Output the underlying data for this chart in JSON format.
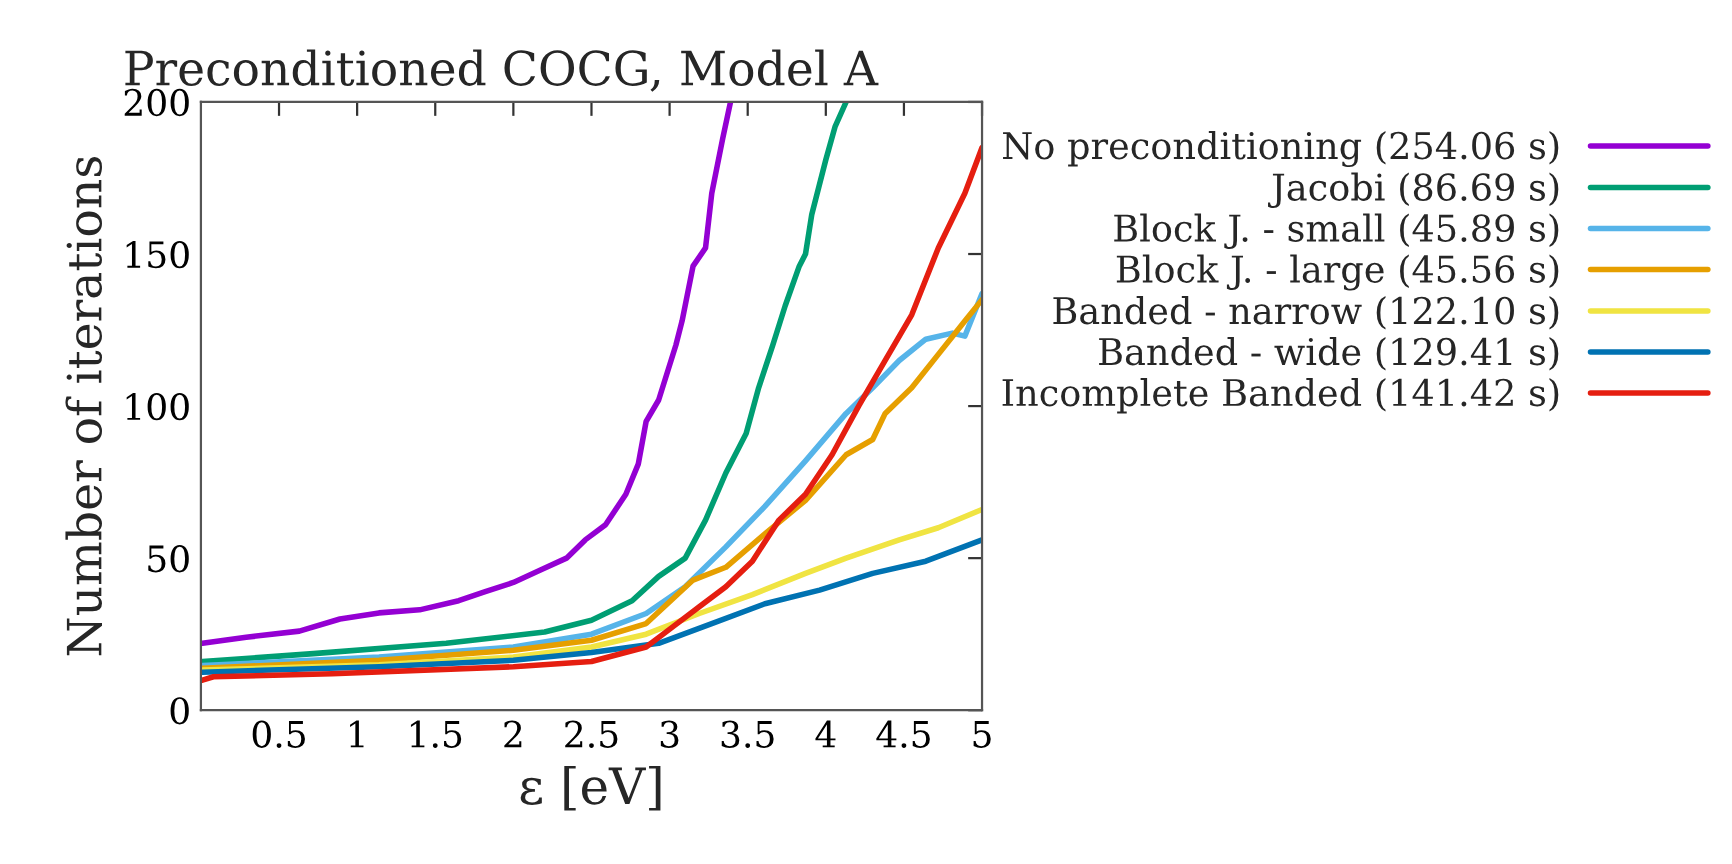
{
  "chart_data": {
    "type": "line",
    "title": "Preconditioned COCG, Model A",
    "xlabel": "ε [eV]",
    "ylabel": "Number of iterations",
    "xlim": [
      0,
      5
    ],
    "xticks": [
      0.5,
      1,
      1.5,
      2,
      2.5,
      3,
      3.5,
      4,
      4.5,
      5
    ],
    "ylim": [
      0,
      200
    ],
    "yticks": [
      0,
      50,
      100,
      150,
      200
    ],
    "grid": false,
    "legend": "right",
    "marker": "none",
    "line_style": "solid",
    "series": [
      {
        "name": "No preconditioning (254.06 s)",
        "color": "#9400d3",
        "x": [
          0.01,
          0.29,
          0.63,
          0.89,
          1.14,
          1.4,
          1.65,
          1.82,
          2.0,
          2.17,
          2.34,
          2.46,
          2.59,
          2.72,
          2.8,
          2.85,
          2.93,
          3.04,
          3.08,
          3.15,
          3.23,
          3.27,
          3.34,
          3.39
        ],
        "values": [
          22,
          24,
          26,
          30,
          32,
          33,
          36,
          39,
          42,
          46,
          50,
          56,
          61,
          71,
          81,
          95,
          102,
          120,
          128,
          146,
          152,
          170,
          188,
          200
        ]
      },
      {
        "name": "Jacobi (86.69 s)",
        "color": "#009e73",
        "x": [
          0.01,
          0.72,
          1.57,
          2.2,
          2.5,
          2.76,
          2.93,
          3.1,
          3.23,
          3.36,
          3.49,
          3.57,
          3.66,
          3.74,
          3.83,
          3.87,
          3.91,
          4.0,
          4.06,
          4.13
        ],
        "values": [
          16,
          18.6,
          22,
          25.7,
          29.6,
          36,
          44,
          50,
          62.5,
          78,
          91,
          106,
          120,
          133,
          146,
          150,
          163,
          181,
          192,
          200
        ]
      },
      {
        "name": "Block J. - small (45.89 s)",
        "color": "#56b4e9",
        "x": [
          0.01,
          1.14,
          2.0,
          2.5,
          2.85,
          3.1,
          3.36,
          3.61,
          3.87,
          4.13,
          4.3,
          4.47,
          4.64,
          4.81,
          4.89,
          5.0
        ],
        "values": [
          14.7,
          17.5,
          20.8,
          25,
          31.8,
          40.6,
          53.7,
          67,
          82,
          97.6,
          106,
          115,
          122,
          124,
          123,
          137
        ]
      },
      {
        "name": "Block J. - large (45.56 s)",
        "color": "#e69f00",
        "x": [
          0.01,
          1.14,
          2.0,
          2.5,
          2.85,
          3.15,
          3.36,
          3.61,
          3.87,
          4.13,
          4.3,
          4.38,
          4.55,
          4.72,
          4.89,
          5.0
        ],
        "values": [
          13.8,
          16.4,
          19.7,
          23,
          28.5,
          42.8,
          47,
          58,
          69,
          84,
          89,
          97.6,
          106,
          117,
          128,
          135
        ]
      },
      {
        "name": "Banded - narrow (122.10 s)",
        "color": "#f0e442",
        "x": [
          0.01,
          1.14,
          2.0,
          2.5,
          2.85,
          3.19,
          3.53,
          3.87,
          4.13,
          4.47,
          4.72,
          5.0
        ],
        "values": [
          13.2,
          14.9,
          17.5,
          20.8,
          25,
          31.8,
          38,
          45,
          50,
          56,
          60,
          66
        ]
      },
      {
        "name": "Banded - wide (129.41 s)",
        "color": "#0072b2",
        "x": [
          0.01,
          1.14,
          2.0,
          2.5,
          2.93,
          3.27,
          3.61,
          3.96,
          4.3,
          4.64,
          5.0
        ],
        "values": [
          12.5,
          14.3,
          16.4,
          19,
          22,
          28.5,
          35,
          39.5,
          45,
          49,
          56
        ]
      },
      {
        "name": "Incomplete Banded (141.42 s)",
        "color": "#e51e10",
        "x": [
          0.01,
          0.08,
          0.84,
          2.0,
          2.5,
          2.85,
          3.02,
          3.19,
          3.36,
          3.53,
          3.7,
          3.87,
          4.04,
          4.21,
          4.38,
          4.55,
          4.72,
          4.89,
          5.0
        ],
        "values": [
          9.9,
          11,
          12,
          14.3,
          16,
          20.8,
          27.4,
          34,
          40.6,
          49,
          62.5,
          71,
          84,
          100,
          115,
          130,
          152,
          170,
          185
        ]
      }
    ]
  }
}
